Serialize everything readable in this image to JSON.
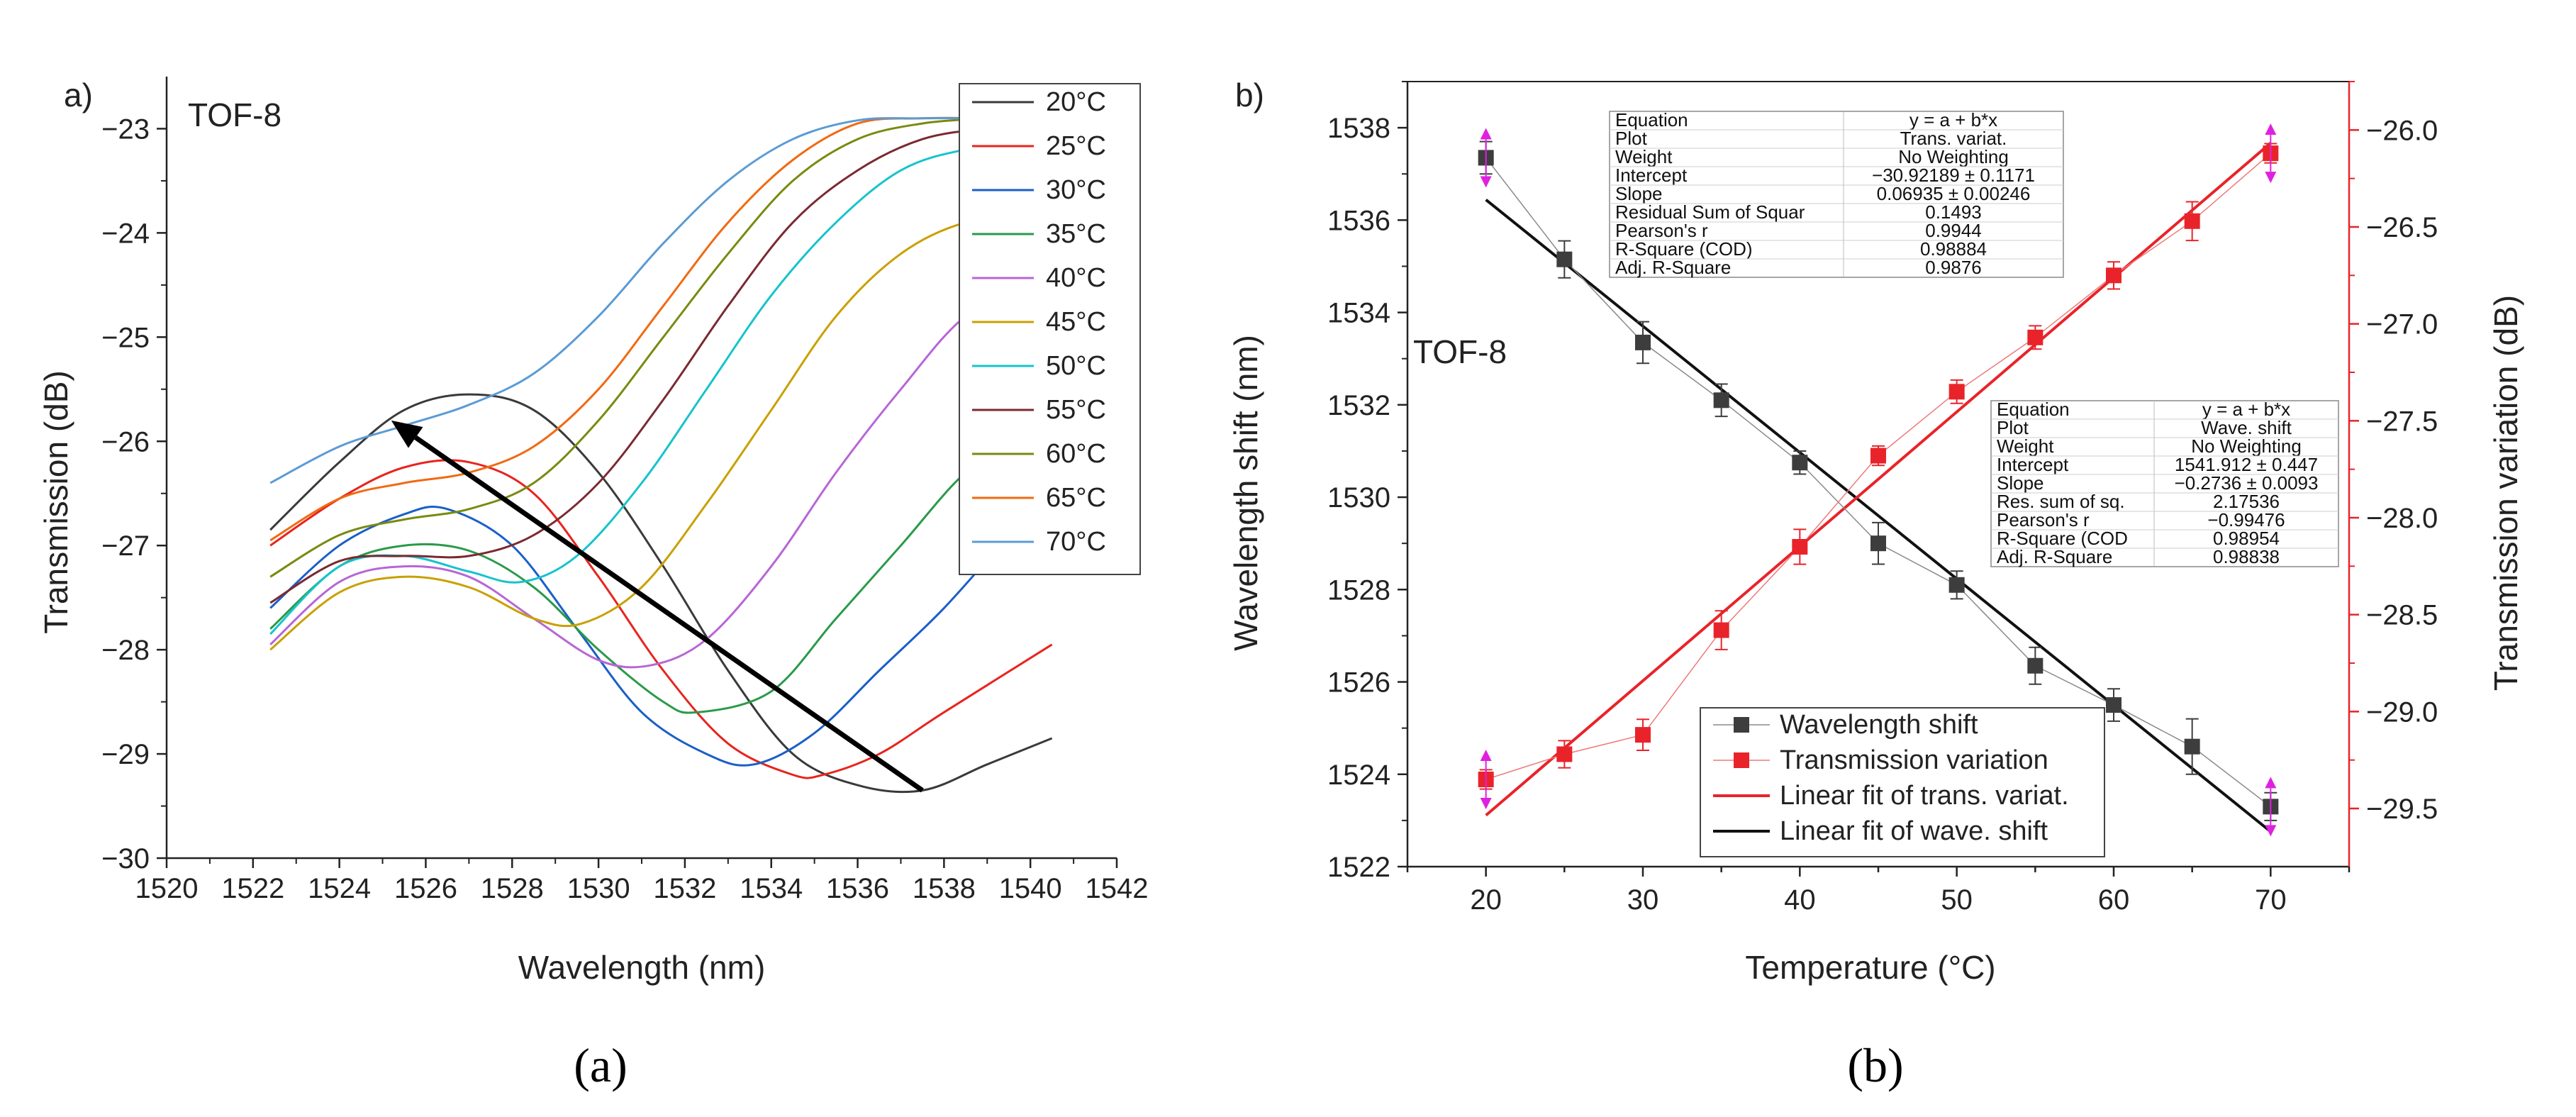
{
  "chart_data": [
    {
      "type": "line",
      "panel_label": "a)",
      "caption": "(a)",
      "annotation": "TOF-8",
      "xlabel": "Wavelength (nm)",
      "ylabel": "Transmission (dB)",
      "xlim": [
        1520,
        1542
      ],
      "ylim": [
        -30,
        -22.5
      ],
      "xticks": [
        1520,
        1522,
        1524,
        1526,
        1528,
        1530,
        1532,
        1534,
        1536,
        1538,
        1540,
        1542
      ],
      "yticks": [
        -30,
        -29,
        -28,
        -27,
        -26,
        -25,
        -24,
        -23
      ],
      "legend_position": "top-right",
      "arrow": {
        "from": [
          1537.5,
          -29.35
        ],
        "to": [
          1525.2,
          -25.8
        ]
      },
      "series": [
        {
          "name": "20°C",
          "color": "#3a3a3a",
          "x": [
            1522.4,
            1524,
            1525.5,
            1527,
            1528.5,
            1530,
            1531.5,
            1533,
            1534.5,
            1536,
            1537.5,
            1539,
            1540.5
          ],
          "values": [
            -26.85,
            -26.2,
            -25.7,
            -25.55,
            -25.7,
            -26.3,
            -27.2,
            -28.2,
            -29.0,
            -29.3,
            -29.35,
            -29.1,
            -28.85
          ]
        },
        {
          "name": "25°C",
          "color": "#e8241d",
          "x": [
            1522.4,
            1524,
            1525.5,
            1527,
            1528.5,
            1530,
            1531.5,
            1533,
            1534.5,
            1535.2,
            1536.5,
            1538,
            1540.5
          ],
          "values": [
            -27.0,
            -26.55,
            -26.25,
            -26.2,
            -26.5,
            -27.3,
            -28.2,
            -28.9,
            -29.2,
            -29.2,
            -29.0,
            -28.6,
            -27.95
          ]
        },
        {
          "name": "30°C",
          "color": "#1a5fc7",
          "x": [
            1522.4,
            1524,
            1525.5,
            1526.5,
            1528,
            1529.5,
            1531,
            1532.5,
            1533.6,
            1535,
            1536.5,
            1538,
            1539.5
          ],
          "values": [
            -27.6,
            -27.0,
            -26.7,
            -26.65,
            -27.0,
            -27.8,
            -28.6,
            -29.0,
            -29.1,
            -28.8,
            -28.2,
            -27.6,
            -26.9
          ]
        },
        {
          "name": "35°C",
          "color": "#2a9a4a",
          "x": [
            1522.4,
            1524,
            1525.5,
            1527,
            1528.5,
            1530,
            1531.5,
            1532.3,
            1534,
            1535.5,
            1537,
            1538.5,
            1540
          ],
          "values": [
            -27.8,
            -27.2,
            -27.0,
            -27.05,
            -27.4,
            -28.0,
            -28.5,
            -28.6,
            -28.4,
            -27.7,
            -27.0,
            -26.3,
            -25.9
          ]
        },
        {
          "name": "40°C",
          "color": "#b766d6",
          "x": [
            1522.4,
            1524,
            1525.5,
            1527,
            1528.5,
            1530,
            1531.2,
            1532.5,
            1534,
            1535.5,
            1537,
            1538.5,
            1540
          ],
          "values": [
            -27.95,
            -27.35,
            -27.2,
            -27.3,
            -27.7,
            -28.1,
            -28.15,
            -27.9,
            -27.2,
            -26.3,
            -25.5,
            -24.8,
            -24.55
          ]
        },
        {
          "name": "45°C",
          "color": "#c9a000",
          "x": [
            1522.4,
            1524,
            1525.5,
            1527,
            1528.5,
            1529.6,
            1531,
            1532.5,
            1534,
            1535.5,
            1537,
            1538.5,
            1540
          ],
          "values": [
            -28.0,
            -27.45,
            -27.3,
            -27.4,
            -27.7,
            -27.75,
            -27.4,
            -26.6,
            -25.7,
            -24.8,
            -24.2,
            -23.9,
            -23.85
          ]
        },
        {
          "name": "50°C",
          "color": "#17c3cc",
          "x": [
            1522.4,
            1524,
            1525.5,
            1527,
            1528.2,
            1529.5,
            1531,
            1532.5,
            1534,
            1535.5,
            1537,
            1538.5,
            1540
          ],
          "values": [
            -27.85,
            -27.2,
            -27.1,
            -27.25,
            -27.35,
            -27.1,
            -26.4,
            -25.5,
            -24.6,
            -23.9,
            -23.4,
            -23.2,
            -23.15
          ]
        },
        {
          "name": "55°C",
          "color": "#7a2a30",
          "x": [
            1522.4,
            1524,
            1525.5,
            1527,
            1528.5,
            1530,
            1531.5,
            1533,
            1534.5,
            1536,
            1537.5,
            1539,
            1540
          ],
          "values": [
            -27.55,
            -27.15,
            -27.1,
            -27.1,
            -26.9,
            -26.4,
            -25.6,
            -24.7,
            -23.9,
            -23.4,
            -23.1,
            -23.0,
            -23.0
          ]
        },
        {
          "name": "60°C",
          "color": "#7a8a10",
          "x": [
            1522.4,
            1524,
            1525.5,
            1527,
            1528.5,
            1530,
            1531.5,
            1533,
            1534.5,
            1536,
            1537.5,
            1539
          ],
          "values": [
            -27.3,
            -26.9,
            -26.75,
            -26.65,
            -26.4,
            -25.8,
            -25.0,
            -24.2,
            -23.5,
            -23.1,
            -22.95,
            -22.9
          ]
        },
        {
          "name": "65°C",
          "color": "#f06a12",
          "x": [
            1522.4,
            1524,
            1525.5,
            1527,
            1528.5,
            1530,
            1531.5,
            1533,
            1534.5,
            1536,
            1537.5,
            1539
          ],
          "values": [
            -26.95,
            -26.55,
            -26.4,
            -26.3,
            -26.05,
            -25.5,
            -24.7,
            -23.9,
            -23.3,
            -22.95,
            -22.9,
            -22.9
          ]
        },
        {
          "name": "70°C",
          "color": "#5b9bd5",
          "x": [
            1522.4,
            1524,
            1525.5,
            1527,
            1528.5,
            1530,
            1531.5,
            1533,
            1534.5,
            1536,
            1537.5,
            1539
          ],
          "values": [
            -26.4,
            -26.05,
            -25.85,
            -25.65,
            -25.35,
            -24.8,
            -24.1,
            -23.5,
            -23.1,
            -22.92,
            -22.9,
            -22.9
          ]
        }
      ]
    },
    {
      "type": "scatter",
      "panel_label": "b)",
      "caption": "(b)",
      "annotation": "TOF-8",
      "xlabel": "Temperature (°C)",
      "ylabel": "Wavelength shift (nm)",
      "y2label": "Transmission variation (dB)",
      "xlim": [
        15,
        75
      ],
      "ylim": [
        1522,
        1539
      ],
      "y2lim": [
        -29.8,
        -25.75
      ],
      "xticks": [
        20,
        30,
        40,
        50,
        60,
        70
      ],
      "yticks": [
        1522,
        1524,
        1526,
        1528,
        1530,
        1532,
        1534,
        1536,
        1538
      ],
      "y2ticks": [
        -29.5,
        -29.0,
        -28.5,
        -28.0,
        -27.5,
        -27.0,
        -26.5,
        -26.0
      ],
      "legend_position": "bottom-center",
      "series": [
        {
          "name": "Wavelength shift",
          "color": "#3d3d3d",
          "axis": "left",
          "x": [
            20,
            25,
            30,
            35,
            40,
            45,
            50,
            55,
            60,
            65,
            70
          ],
          "values": [
            1537.35,
            1535.15,
            1533.35,
            1532.1,
            1530.75,
            1529.0,
            1528.1,
            1526.35,
            1525.5,
            1524.6,
            1523.3
          ],
          "errors": [
            0.35,
            0.4,
            0.45,
            0.35,
            0.25,
            0.45,
            0.3,
            0.4,
            0.35,
            0.6,
            0.3
          ]
        },
        {
          "name": "Transmission variation",
          "color": "#e8242a",
          "axis": "right",
          "x": [
            20,
            25,
            30,
            35,
            40,
            45,
            50,
            55,
            60,
            65,
            70
          ],
          "values": [
            -29.35,
            -29.22,
            -29.12,
            -28.58,
            -28.15,
            -27.68,
            -27.35,
            -27.07,
            -26.75,
            -26.47,
            -26.12
          ],
          "errors": [
            0.05,
            0.07,
            0.08,
            0.1,
            0.09,
            0.05,
            0.06,
            0.06,
            0.07,
            0.1,
            0.05
          ]
        },
        {
          "name": "Linear fit of trans. variat.",
          "color": "#e8242a",
          "axis": "right",
          "x": [
            20,
            70
          ],
          "values": [
            -29.535,
            -26.067
          ]
        },
        {
          "name": "Linear fit of wave. shift",
          "color": "#111111",
          "axis": "left",
          "x": [
            20,
            70
          ],
          "values": [
            1536.44,
            1522.76
          ]
        }
      ],
      "fit_tables": [
        {
          "rows": [
            [
              "Equation",
              "y = a + b*x"
            ],
            [
              "Plot",
              "Trans. variat."
            ],
            [
              "Weight",
              "No Weighting"
            ],
            [
              "Intercept",
              "−30.92189 ± 0.1171"
            ],
            [
              "Slope",
              "0.06935 ± 0.00246"
            ],
            [
              "Residual Sum of Squar",
              "0.1493"
            ],
            [
              "Pearson's r",
              "0.9944"
            ],
            [
              "R-Square (COD)",
              "0.98884"
            ],
            [
              "Adj. R-Square",
              "0.9876"
            ]
          ]
        },
        {
          "rows": [
            [
              "Equation",
              "y = a + b*x"
            ],
            [
              "Plot",
              "Wave. shift"
            ],
            [
              "Weight",
              "No Weighting"
            ],
            [
              "Intercept",
              "1541.912 ± 0.447"
            ],
            [
              "Slope",
              "−0.2736 ± 0.0093"
            ],
            [
              "Res. sum of sq.",
              "2.17536"
            ],
            [
              "Pearson's r",
              "−0.99476"
            ],
            [
              "R-Square (COD",
              "0.98954"
            ],
            [
              "Adj. R-Square",
              "0.98838"
            ]
          ]
        }
      ]
    }
  ]
}
